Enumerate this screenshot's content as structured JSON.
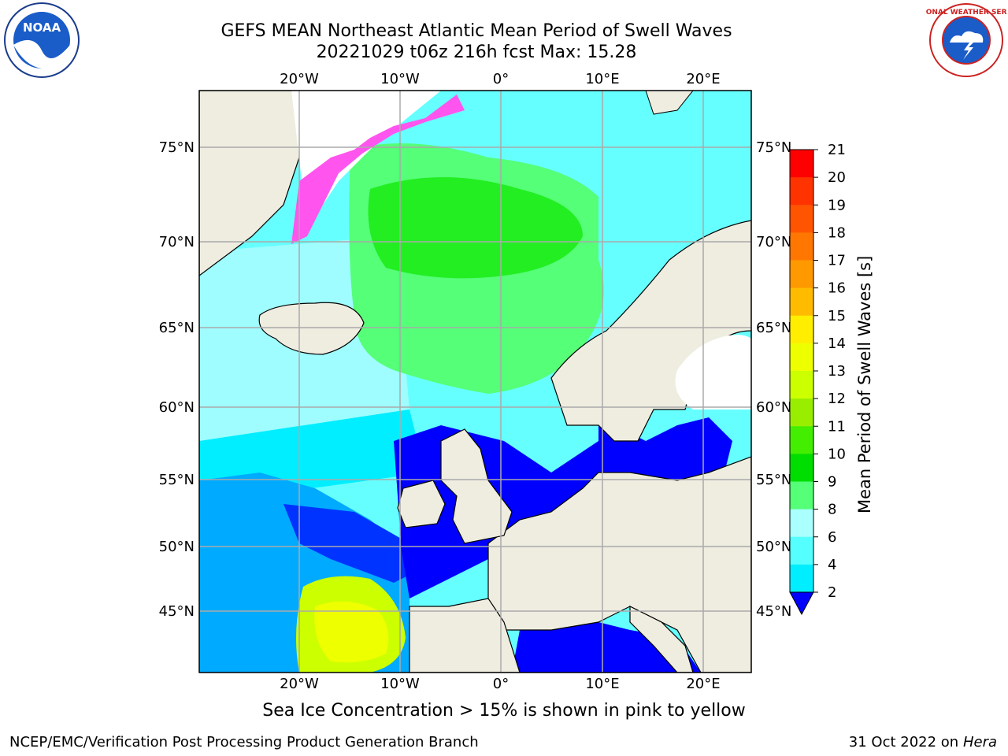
{
  "title_line1": "GEFS MEAN Northeast Atlantic Mean Period of Swell Waves",
  "title_line2": "20221029 t06z 216h fcst   Max: 15.28",
  "caption": "Sea Ice Concentration > 15% is shown in pink to yellow",
  "footer_left": "NCEP/EMC/Verification Post Processing Product Generation Branch",
  "footer_right_date": "31 Oct 2022 on ",
  "footer_right_host": "Hera",
  "colorbar": {
    "label": "Mean Period of Swell Waves [s]",
    "ticks": [
      "21",
      "20",
      "19",
      "18",
      "17",
      "16",
      "15",
      "14",
      "13",
      "12",
      "11",
      "10",
      "9",
      "8",
      "6",
      "4",
      "2"
    ],
    "colors": [
      "#ff0000",
      "#ff3300",
      "#ff5500",
      "#ff7700",
      "#ff9900",
      "#ffbb00",
      "#ffee00",
      "#eeff00",
      "#ccff00",
      "#99ee00",
      "#44ee00",
      "#00dd00",
      "#55ff77",
      "#aaffff",
      "#55ffff",
      "#00eeff",
      "#0099ff"
    ]
  },
  "axes": {
    "lon_labels": [
      "20°W",
      "10°W",
      "0°",
      "10°E",
      "20°E"
    ],
    "lat_labels": [
      "75°N",
      "70°N",
      "65°N",
      "60°N",
      "55°N",
      "50°N",
      "45°N"
    ]
  },
  "logos": {
    "noaa": "NOAA",
    "nws": "NATIONAL WEATHER SERVICE"
  },
  "colors": {
    "land": "#eeede0",
    "ocean_mid": "#88ffff",
    "grid": "#aaaaaa"
  }
}
